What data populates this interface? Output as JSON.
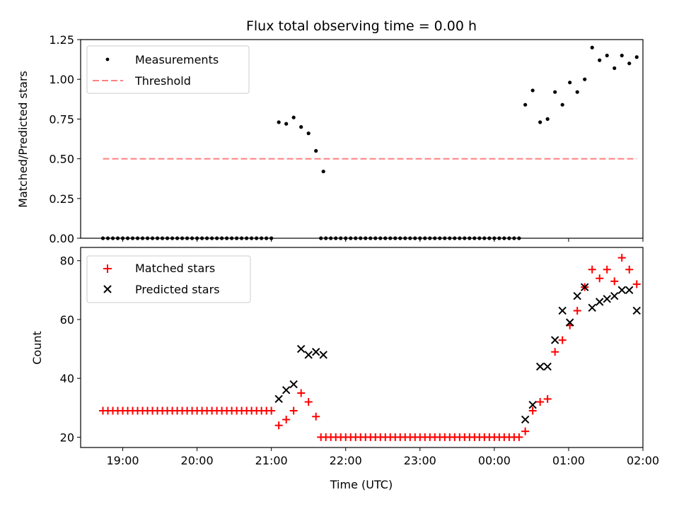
{
  "chart_data": [
    {
      "type": "scatter",
      "title": "Flux total observing time = 0.00 h",
      "xlabel": "",
      "ylabel": "Matched/Predicted stars",
      "xlim": [
        "18:26",
        "26:00"
      ],
      "ylim": [
        0,
        1.25
      ],
      "x_ticks": [
        "19:00",
        "20:00",
        "21:00",
        "22:00",
        "23:00",
        "00:00",
        "01:00",
        "02:00"
      ],
      "y_ticks": [
        "0.00",
        "0.25",
        "0.50",
        "0.75",
        "1.00",
        "1.25"
      ],
      "y_tick_values": [
        0,
        0.25,
        0.5,
        0.75,
        1.0,
        1.25
      ],
      "legend_position": "top-left",
      "series": [
        {
          "name": "Measurements",
          "color": "#000000",
          "marker": "dot",
          "points": [
            [
              "18:44",
              0
            ],
            [
              "18:48",
              0
            ],
            [
              "18:52",
              0
            ],
            [
              "18:56",
              0
            ],
            [
              "19:00",
              0
            ],
            [
              "19:04",
              0
            ],
            [
              "19:08",
              0
            ],
            [
              "19:12",
              0
            ],
            [
              "19:16",
              0
            ],
            [
              "19:20",
              0
            ],
            [
              "19:24",
              0
            ],
            [
              "19:28",
              0
            ],
            [
              "19:32",
              0
            ],
            [
              "19:36",
              0
            ],
            [
              "19:40",
              0
            ],
            [
              "19:44",
              0
            ],
            [
              "19:48",
              0
            ],
            [
              "19:52",
              0
            ],
            [
              "19:56",
              0
            ],
            [
              "20:00",
              0
            ],
            [
              "20:04",
              0
            ],
            [
              "20:08",
              0
            ],
            [
              "20:12",
              0
            ],
            [
              "20:16",
              0
            ],
            [
              "20:20",
              0
            ],
            [
              "20:24",
              0
            ],
            [
              "20:28",
              0
            ],
            [
              "20:32",
              0
            ],
            [
              "20:36",
              0
            ],
            [
              "20:40",
              0
            ],
            [
              "20:44",
              0
            ],
            [
              "20:48",
              0
            ],
            [
              "20:52",
              0
            ],
            [
              "20:56",
              0
            ],
            [
              "21:00",
              0
            ],
            [
              "21:06",
              0.73
            ],
            [
              "21:12",
              0.72
            ],
            [
              "21:18",
              0.76
            ],
            [
              "21:24",
              0.7
            ],
            [
              "21:30",
              0.66
            ],
            [
              "21:36",
              0.55
            ],
            [
              "21:42",
              0.42
            ],
            [
              "21:40",
              0
            ],
            [
              "21:44",
              0
            ],
            [
              "21:48",
              0
            ],
            [
              "21:52",
              0
            ],
            [
              "21:56",
              0
            ],
            [
              "22:00",
              0
            ],
            [
              "22:04",
              0
            ],
            [
              "22:08",
              0
            ],
            [
              "22:12",
              0
            ],
            [
              "22:16",
              0
            ],
            [
              "22:20",
              0
            ],
            [
              "22:24",
              0
            ],
            [
              "22:28",
              0
            ],
            [
              "22:32",
              0
            ],
            [
              "22:36",
              0
            ],
            [
              "22:40",
              0
            ],
            [
              "22:44",
              0
            ],
            [
              "22:48",
              0
            ],
            [
              "22:52",
              0
            ],
            [
              "22:56",
              0
            ],
            [
              "23:00",
              0
            ],
            [
              "23:04",
              0
            ],
            [
              "23:08",
              0
            ],
            [
              "23:12",
              0
            ],
            [
              "23:16",
              0
            ],
            [
              "23:20",
              0
            ],
            [
              "23:24",
              0
            ],
            [
              "23:28",
              0
            ],
            [
              "23:32",
              0
            ],
            [
              "23:36",
              0
            ],
            [
              "23:40",
              0
            ],
            [
              "23:44",
              0
            ],
            [
              "23:48",
              0
            ],
            [
              "23:52",
              0
            ],
            [
              "23:56",
              0
            ],
            [
              "24:00",
              0
            ],
            [
              "24:04",
              0
            ],
            [
              "24:08",
              0
            ],
            [
              "24:12",
              0
            ],
            [
              "24:16",
              0
            ],
            [
              "24:20",
              0
            ],
            [
              "24:25",
              0.84
            ],
            [
              "24:31",
              0.93
            ],
            [
              "24:37",
              0.73
            ],
            [
              "24:43",
              0.75
            ],
            [
              "24:49",
              0.92
            ],
            [
              "24:55",
              0.84
            ],
            [
              "25:01",
              0.98
            ],
            [
              "25:07",
              0.92
            ],
            [
              "25:13",
              1.0
            ],
            [
              "25:19",
              1.2
            ],
            [
              "25:25",
              1.12
            ],
            [
              "25:31",
              1.15
            ],
            [
              "25:37",
              1.07
            ],
            [
              "25:43",
              1.15
            ],
            [
              "25:49",
              1.1
            ],
            [
              "25:55",
              1.14
            ]
          ]
        },
        {
          "name": "Threshold",
          "color": "#ff8080",
          "line": "dashed",
          "points": [
            [
              "18:44",
              0.5
            ],
            [
              "25:55",
              0.5
            ]
          ]
        }
      ]
    },
    {
      "type": "scatter",
      "title": "",
      "xlabel": "Time (UTC)",
      "ylabel": "Count",
      "xlim": [
        "18:26",
        "26:00"
      ],
      "ylim": [
        16.5,
        84.5
      ],
      "x_ticks": [
        "19:00",
        "20:00",
        "21:00",
        "22:00",
        "23:00",
        "00:00",
        "01:00",
        "02:00"
      ],
      "y_ticks": [
        "20",
        "40",
        "60",
        "80"
      ],
      "y_tick_values": [
        20,
        40,
        60,
        80
      ],
      "legend_position": "top-left",
      "series": [
        {
          "name": "Matched stars",
          "color": "#ff0000",
          "marker": "plus",
          "points": [
            [
              "18:44",
              29
            ],
            [
              "18:48",
              29
            ],
            [
              "18:52",
              29
            ],
            [
              "18:56",
              29
            ],
            [
              "19:00",
              29
            ],
            [
              "19:04",
              29
            ],
            [
              "19:08",
              29
            ],
            [
              "19:12",
              29
            ],
            [
              "19:16",
              29
            ],
            [
              "19:20",
              29
            ],
            [
              "19:24",
              29
            ],
            [
              "19:28",
              29
            ],
            [
              "19:32",
              29
            ],
            [
              "19:36",
              29
            ],
            [
              "19:40",
              29
            ],
            [
              "19:44",
              29
            ],
            [
              "19:48",
              29
            ],
            [
              "19:52",
              29
            ],
            [
              "19:56",
              29
            ],
            [
              "20:00",
              29
            ],
            [
              "20:04",
              29
            ],
            [
              "20:08",
              29
            ],
            [
              "20:12",
              29
            ],
            [
              "20:16",
              29
            ],
            [
              "20:20",
              29
            ],
            [
              "20:24",
              29
            ],
            [
              "20:28",
              29
            ],
            [
              "20:32",
              29
            ],
            [
              "20:36",
              29
            ],
            [
              "20:40",
              29
            ],
            [
              "20:44",
              29
            ],
            [
              "20:48",
              29
            ],
            [
              "20:52",
              29
            ],
            [
              "20:56",
              29
            ],
            [
              "21:00",
              29
            ],
            [
              "21:06",
              24
            ],
            [
              "21:12",
              26
            ],
            [
              "21:18",
              29
            ],
            [
              "21:24",
              35
            ],
            [
              "21:30",
              32
            ],
            [
              "21:36",
              27
            ],
            [
              "21:40",
              20
            ],
            [
              "21:44",
              20
            ],
            [
              "21:48",
              20
            ],
            [
              "21:52",
              20
            ],
            [
              "21:56",
              20
            ],
            [
              "22:00",
              20
            ],
            [
              "22:04",
              20
            ],
            [
              "22:08",
              20
            ],
            [
              "22:12",
              20
            ],
            [
              "22:16",
              20
            ],
            [
              "22:20",
              20
            ],
            [
              "22:24",
              20
            ],
            [
              "22:28",
              20
            ],
            [
              "22:32",
              20
            ],
            [
              "22:36",
              20
            ],
            [
              "22:40",
              20
            ],
            [
              "22:44",
              20
            ],
            [
              "22:48",
              20
            ],
            [
              "22:52",
              20
            ],
            [
              "22:56",
              20
            ],
            [
              "23:00",
              20
            ],
            [
              "23:04",
              20
            ],
            [
              "23:08",
              20
            ],
            [
              "23:12",
              20
            ],
            [
              "23:16",
              20
            ],
            [
              "23:20",
              20
            ],
            [
              "23:24",
              20
            ],
            [
              "23:28",
              20
            ],
            [
              "23:32",
              20
            ],
            [
              "23:36",
              20
            ],
            [
              "23:40",
              20
            ],
            [
              "23:44",
              20
            ],
            [
              "23:48",
              20
            ],
            [
              "23:52",
              20
            ],
            [
              "23:56",
              20
            ],
            [
              "24:00",
              20
            ],
            [
              "24:04",
              20
            ],
            [
              "24:08",
              20
            ],
            [
              "24:12",
              20
            ],
            [
              "24:16",
              20
            ],
            [
              "24:20",
              20
            ],
            [
              "24:25",
              22
            ],
            [
              "24:31",
              29
            ],
            [
              "24:37",
              32
            ],
            [
              "24:43",
              33
            ],
            [
              "24:49",
              49
            ],
            [
              "24:55",
              53
            ],
            [
              "25:01",
              58
            ],
            [
              "25:07",
              63
            ],
            [
              "25:13",
              71
            ],
            [
              "25:19",
              77
            ],
            [
              "25:25",
              74
            ],
            [
              "25:31",
              77
            ],
            [
              "25:37",
              73
            ],
            [
              "25:43",
              81
            ],
            [
              "25:49",
              77
            ],
            [
              "25:55",
              72
            ]
          ]
        },
        {
          "name": "Predicted stars",
          "color": "#000000",
          "marker": "x",
          "points": [
            [
              "21:06",
              33
            ],
            [
              "21:12",
              36
            ],
            [
              "21:18",
              38
            ],
            [
              "21:24",
              50
            ],
            [
              "21:30",
              48
            ],
            [
              "21:36",
              49
            ],
            [
              "21:42",
              48
            ],
            [
              "24:25",
              26
            ],
            [
              "24:31",
              31
            ],
            [
              "24:37",
              44
            ],
            [
              "24:43",
              44
            ],
            [
              "24:49",
              53
            ],
            [
              "24:55",
              63
            ],
            [
              "25:01",
              59
            ],
            [
              "25:07",
              68
            ],
            [
              "25:13",
              71
            ],
            [
              "25:19",
              64
            ],
            [
              "25:25",
              66
            ],
            [
              "25:31",
              67
            ],
            [
              "25:37",
              68
            ],
            [
              "25:43",
              70
            ],
            [
              "25:49",
              70
            ],
            [
              "25:55",
              63
            ]
          ]
        }
      ]
    }
  ]
}
